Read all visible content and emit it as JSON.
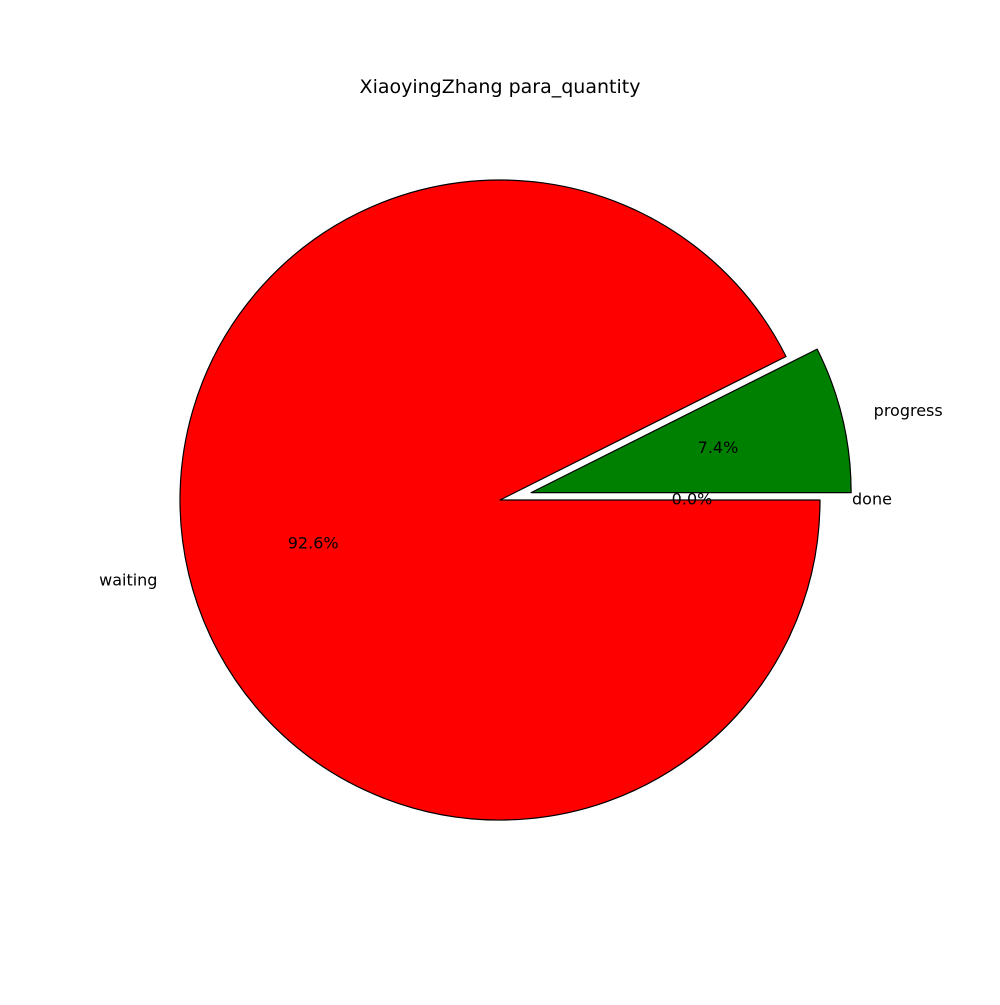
{
  "chart_data": {
    "type": "pie",
    "title": "XiaoyingZhang  para_quantity",
    "slices": [
      {
        "label": "done",
        "value": 0.0,
        "pct_label": "0.0%",
        "color": "#0000ff",
        "exploded": false
      },
      {
        "label": "progress",
        "value": 7.4,
        "pct_label": "7.4%",
        "color": "#008000",
        "exploded": true
      },
      {
        "label": "waiting",
        "value": 92.6,
        "pct_label": "92.6%",
        "color": "#ff0000",
        "exploded": false
      }
    ],
    "edge_color": "#000000",
    "start_angle_deg": 0,
    "direction": "counterclockwise"
  }
}
